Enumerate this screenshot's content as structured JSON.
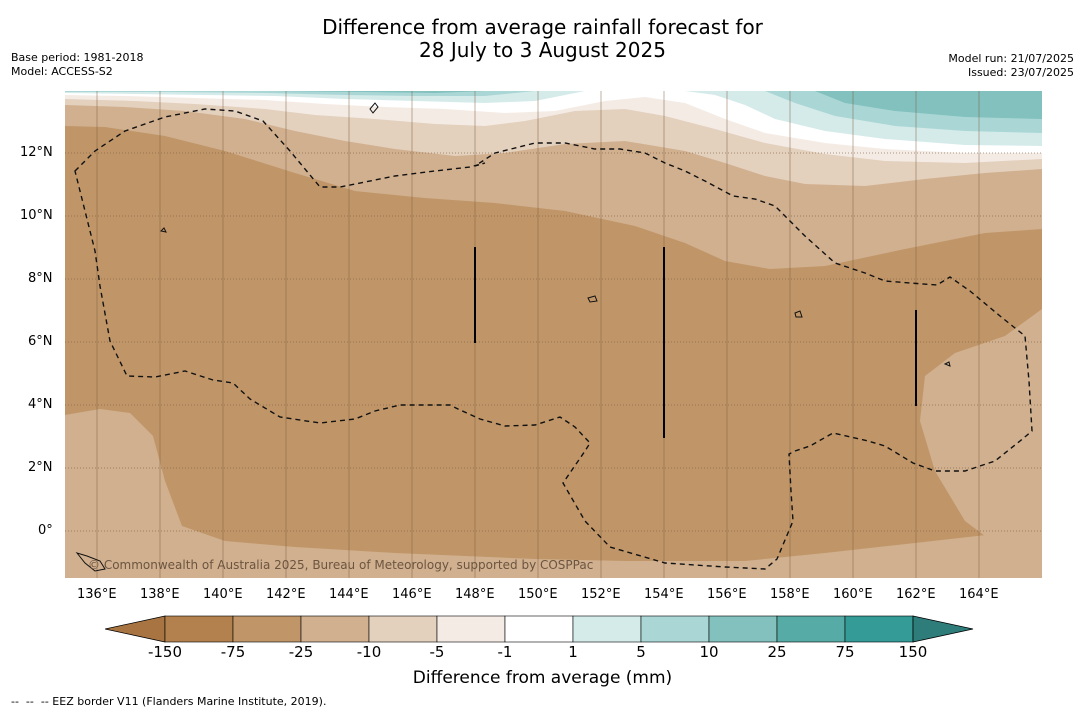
{
  "title": {
    "line1": "Difference from average rainfall forecast for",
    "line2": "28 July to 3 August 2025"
  },
  "meta_left": {
    "base_period": "Base period: 1981-2018",
    "model": "Model: ACCESS-S2"
  },
  "meta_right": {
    "model_run": "Model run: 21/07/2025",
    "issued": "Issued: 23/07/2025"
  },
  "map": {
    "lon_labels": [
      "136°E",
      "138°E",
      "140°E",
      "142°E",
      "144°E",
      "146°E",
      "148°E",
      "150°E",
      "152°E",
      "154°E",
      "156°E",
      "158°E",
      "160°E",
      "162°E",
      "164°E"
    ],
    "lat_labels": [
      "12°N",
      "10°N",
      "8°N",
      "6°N",
      "4°N",
      "2°N",
      "0°"
    ],
    "copyright": "© Commonwealth of Australia 2025, Bureau of Meteorology, supported by COSPPac",
    "colors": {
      "dry_75": "#c09669",
      "dry_25": "#d1b08f",
      "dry_10": "#e3d0bd",
      "dry_5": "#f4ebe5",
      "neutral": "#ffffff",
      "wet_5": "#d5ebea",
      "wet_10": "#aad7d6",
      "wet_25": "#82c1be",
      "grid": "#7a5c3e"
    }
  },
  "colorbar": {
    "ticks": [
      "-150",
      "-75",
      "-25",
      "-10",
      "-5",
      "-1",
      "1",
      "5",
      "10",
      "25",
      "75",
      "150"
    ],
    "colors": [
      "#a87542",
      "#b2814d",
      "#c09669",
      "#d1b08f",
      "#e3d0bd",
      "#f4ebe5",
      "#ffffff",
      "#d5ebea",
      "#aad7d6",
      "#82c1be",
      "#57aba6",
      "#349b97",
      "#2e7d7b"
    ],
    "label": "Difference from average (mm)"
  },
  "footnote": "--  --  -- EEZ border V11 (Flanders Marine Institute, 2019)."
}
